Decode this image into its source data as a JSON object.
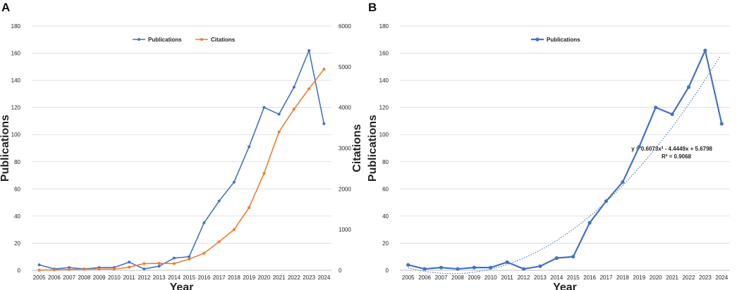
{
  "chart_data": [
    {
      "type": "line",
      "panel_label": "A",
      "xlabel": "Year",
      "ylabel": "Publications",
      "y2label": "Citations",
      "ylim": [
        0,
        180
      ],
      "y2lim": [
        0,
        6000
      ],
      "yticks": [
        0,
        20,
        40,
        60,
        80,
        100,
        120,
        140,
        160,
        180
      ],
      "y2ticks": [
        0,
        1000,
        2000,
        3000,
        4000,
        5000,
        6000
      ],
      "categories": [
        "2005",
        "2006",
        "2007",
        "2008",
        "2009",
        "2010",
        "2011",
        "2012",
        "2013",
        "2014",
        "2015",
        "2016",
        "2017",
        "2018",
        "2019",
        "2020",
        "2021",
        "2022",
        "2023",
        "2024"
      ],
      "legend_position": "top-center",
      "grid": true,
      "series": [
        {
          "name": "Publications",
          "axis": "left",
          "color": "#4472C4",
          "values": [
            4,
            1,
            2,
            1,
            2,
            2,
            6,
            1,
            3,
            9,
            10,
            35,
            51,
            65,
            91,
            120,
            115,
            135,
            162,
            108
          ]
        },
        {
          "name": "Citations",
          "axis": "right",
          "color": "#ED7D31",
          "values": [
            5,
            10,
            20,
            25,
            30,
            30,
            75,
            165,
            170,
            165,
            275,
            420,
            700,
            1000,
            1540,
            2380,
            3400,
            3960,
            4460,
            4940
          ]
        }
      ]
    },
    {
      "type": "line",
      "panel_label": "B",
      "xlabel": "Year",
      "ylabel": "Publications",
      "ylim": [
        0,
        180
      ],
      "yticks": [
        0,
        20,
        40,
        60,
        80,
        100,
        120,
        140,
        160,
        180
      ],
      "categories": [
        "2005",
        "2006",
        "2007",
        "2008",
        "2009",
        "2010",
        "2011",
        "2012",
        "2013",
        "2014",
        "2015",
        "2016",
        "2017",
        "2018",
        "2019",
        "2020",
        "2021",
        "2022",
        "2023",
        "2024"
      ],
      "legend_position": "top-center",
      "grid": true,
      "series": [
        {
          "name": "Publications",
          "axis": "left",
          "color": "#4472C4",
          "values": [
            4,
            1,
            2,
            1,
            2,
            2,
            6,
            1,
            3,
            9,
            10,
            35,
            51,
            65,
            91,
            120,
            115,
            135,
            162,
            108
          ]
        }
      ],
      "trendline": {
        "type": "polynomial",
        "order": 2,
        "color": "#4472C4",
        "coefficients": [
          0.6073,
          -4.4449,
          5.6798
        ],
        "equation": "y = 0.6073x² - 4.4449x + 5.6798",
        "r_squared": "R² = 0.9068"
      }
    }
  ]
}
